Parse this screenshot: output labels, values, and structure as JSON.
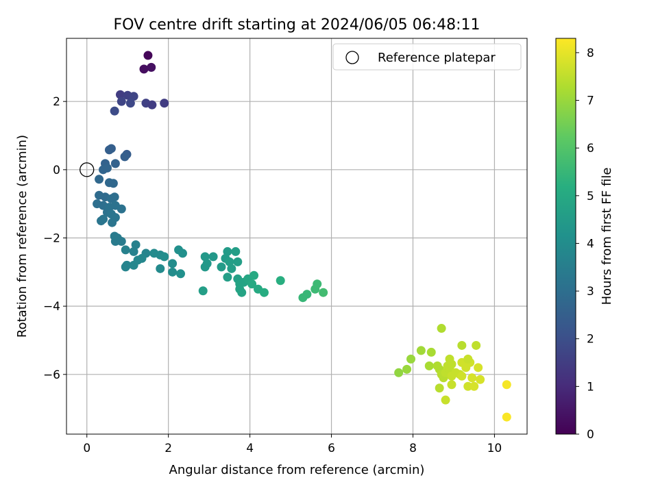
{
  "chart_data": {
    "type": "scatter",
    "title": "FOV centre drift starting at 2024/06/05 06:48:11",
    "xlabel": "Angular distance from reference (arcmin)",
    "ylabel": "Rotation from reference (arcmin)",
    "xlim": [
      -0.5,
      10.8
    ],
    "ylim": [
      -7.75,
      3.85
    ],
    "xticks": [
      0,
      2,
      4,
      6,
      8,
      10
    ],
    "yticks": [
      -6,
      -4,
      -2,
      0,
      2
    ],
    "grid": true,
    "legend": {
      "location": "upper-right",
      "entries": [
        "Reference platepar"
      ]
    },
    "colorbar": {
      "label": "Hours from first FF file",
      "colormap": "viridis",
      "min": 0,
      "max": 8.3,
      "ticks": [
        0,
        1,
        2,
        3,
        4,
        5,
        6,
        7,
        8
      ]
    },
    "reference_point": {
      "x": 0,
      "y": 0
    },
    "points": [
      {
        "x": 1.5,
        "y": 3.35,
        "c": 0.1
      },
      {
        "x": 1.4,
        "y": 2.95,
        "c": 0.3
      },
      {
        "x": 1.58,
        "y": 3.0,
        "c": 0.35
      },
      {
        "x": 0.82,
        "y": 2.2,
        "c": 1.5
      },
      {
        "x": 1.0,
        "y": 2.18,
        "c": 1.6
      },
      {
        "x": 1.15,
        "y": 2.15,
        "c": 1.7
      },
      {
        "x": 0.85,
        "y": 2.0,
        "c": 1.7
      },
      {
        "x": 1.07,
        "y": 1.95,
        "c": 1.8
      },
      {
        "x": 1.45,
        "y": 1.95,
        "c": 1.6
      },
      {
        "x": 1.6,
        "y": 1.9,
        "c": 1.5
      },
      {
        "x": 1.9,
        "y": 1.95,
        "c": 1.5
      },
      {
        "x": 0.68,
        "y": 1.72,
        "c": 1.9
      },
      {
        "x": 0.55,
        "y": 0.58,
        "c": 2.5
      },
      {
        "x": 0.6,
        "y": 0.62,
        "c": 2.5
      },
      {
        "x": 0.98,
        "y": 0.45,
        "c": 2.4
      },
      {
        "x": 0.93,
        "y": 0.38,
        "c": 2.5
      },
      {
        "x": 0.45,
        "y": 0.18,
        "c": 2.6
      },
      {
        "x": 0.7,
        "y": 0.18,
        "c": 2.6
      },
      {
        "x": 0.4,
        "y": 0.0,
        "c": 2.7
      },
      {
        "x": 0.5,
        "y": 0.05,
        "c": 2.7
      },
      {
        "x": 0.3,
        "y": -0.28,
        "c": 2.8
      },
      {
        "x": 0.55,
        "y": -0.38,
        "c": 2.8
      },
      {
        "x": 0.65,
        "y": -0.4,
        "c": 2.8
      },
      {
        "x": 0.3,
        "y": -0.75,
        "c": 2.9
      },
      {
        "x": 0.45,
        "y": -0.8,
        "c": 2.9
      },
      {
        "x": 0.6,
        "y": -0.85,
        "c": 3.0
      },
      {
        "x": 0.68,
        "y": -0.8,
        "c": 3.0
      },
      {
        "x": 0.25,
        "y": -1.0,
        "c": 3.0
      },
      {
        "x": 0.4,
        "y": -1.05,
        "c": 3.0
      },
      {
        "x": 0.55,
        "y": -1.1,
        "c": 3.1
      },
      {
        "x": 0.7,
        "y": -1.05,
        "c": 3.1
      },
      {
        "x": 0.85,
        "y": -1.15,
        "c": 3.1
      },
      {
        "x": 0.5,
        "y": -1.25,
        "c": 3.1
      },
      {
        "x": 0.6,
        "y": -1.3,
        "c": 3.2
      },
      {
        "x": 0.7,
        "y": -1.4,
        "c": 3.2
      },
      {
        "x": 0.4,
        "y": -1.45,
        "c": 3.2
      },
      {
        "x": 0.35,
        "y": -1.5,
        "c": 3.2
      },
      {
        "x": 0.62,
        "y": -1.55,
        "c": 3.2
      },
      {
        "x": 0.68,
        "y": -1.95,
        "c": 3.4
      },
      {
        "x": 0.75,
        "y": -2.0,
        "c": 3.4
      },
      {
        "x": 0.7,
        "y": -2.1,
        "c": 3.4
      },
      {
        "x": 0.85,
        "y": -2.1,
        "c": 3.4
      },
      {
        "x": 0.95,
        "y": -2.35,
        "c": 3.6
      },
      {
        "x": 1.2,
        "y": -2.2,
        "c": 3.6
      },
      {
        "x": 1.15,
        "y": -2.4,
        "c": 3.6
      },
      {
        "x": 1.45,
        "y": -2.45,
        "c": 3.7
      },
      {
        "x": 0.98,
        "y": -2.8,
        "c": 3.7
      },
      {
        "x": 0.95,
        "y": -2.85,
        "c": 3.7
      },
      {
        "x": 1.15,
        "y": -2.8,
        "c": 3.8
      },
      {
        "x": 1.25,
        "y": -2.65,
        "c": 3.8
      },
      {
        "x": 1.35,
        "y": -2.6,
        "c": 3.8
      },
      {
        "x": 1.65,
        "y": -2.45,
        "c": 3.9
      },
      {
        "x": 1.8,
        "y": -2.5,
        "c": 3.9
      },
      {
        "x": 1.8,
        "y": -2.9,
        "c": 3.9
      },
      {
        "x": 1.9,
        "y": -2.55,
        "c": 4.0
      },
      {
        "x": 2.1,
        "y": -2.75,
        "c": 4.0
      },
      {
        "x": 2.1,
        "y": -3.0,
        "c": 4.0
      },
      {
        "x": 2.25,
        "y": -2.35,
        "c": 4.1
      },
      {
        "x": 2.35,
        "y": -2.45,
        "c": 4.1
      },
      {
        "x": 2.3,
        "y": -3.05,
        "c": 4.1
      },
      {
        "x": 2.9,
        "y": -2.55,
        "c": 4.4
      },
      {
        "x": 3.1,
        "y": -2.55,
        "c": 4.4
      },
      {
        "x": 2.95,
        "y": -2.75,
        "c": 4.4
      },
      {
        "x": 2.9,
        "y": -2.85,
        "c": 4.4
      },
      {
        "x": 3.3,
        "y": -2.85,
        "c": 4.5
      },
      {
        "x": 3.4,
        "y": -2.6,
        "c": 4.5
      },
      {
        "x": 3.45,
        "y": -2.4,
        "c": 4.5
      },
      {
        "x": 3.5,
        "y": -2.7,
        "c": 4.6
      },
      {
        "x": 3.55,
        "y": -2.9,
        "c": 4.6
      },
      {
        "x": 3.65,
        "y": -2.4,
        "c": 4.6
      },
      {
        "x": 3.7,
        "y": -2.7,
        "c": 4.6
      },
      {
        "x": 3.45,
        "y": -3.15,
        "c": 4.6
      },
      {
        "x": 2.85,
        "y": -3.55,
        "c": 4.6
      },
      {
        "x": 3.7,
        "y": -3.2,
        "c": 4.7
      },
      {
        "x": 3.75,
        "y": -3.35,
        "c": 4.8
      },
      {
        "x": 3.75,
        "y": -3.5,
        "c": 4.8
      },
      {
        "x": 3.8,
        "y": -3.6,
        "c": 4.8
      },
      {
        "x": 3.85,
        "y": -3.3,
        "c": 4.8
      },
      {
        "x": 3.95,
        "y": -3.2,
        "c": 4.9
      },
      {
        "x": 4.05,
        "y": -3.35,
        "c": 5.0
      },
      {
        "x": 4.1,
        "y": -3.1,
        "c": 5.0
      },
      {
        "x": 4.2,
        "y": -3.5,
        "c": 5.0
      },
      {
        "x": 4.35,
        "y": -3.6,
        "c": 5.1
      },
      {
        "x": 4.75,
        "y": -3.25,
        "c": 5.2
      },
      {
        "x": 5.3,
        "y": -3.75,
        "c": 5.5
      },
      {
        "x": 5.4,
        "y": -3.65,
        "c": 5.5
      },
      {
        "x": 5.6,
        "y": -3.5,
        "c": 5.6
      },
      {
        "x": 5.65,
        "y": -3.35,
        "c": 5.6
      },
      {
        "x": 5.8,
        "y": -3.6,
        "c": 5.7
      },
      {
        "x": 7.65,
        "y": -5.95,
        "c": 6.9
      },
      {
        "x": 7.85,
        "y": -5.85,
        "c": 7.0
      },
      {
        "x": 7.95,
        "y": -5.55,
        "c": 7.0
      },
      {
        "x": 8.2,
        "y": -5.3,
        "c": 7.1
      },
      {
        "x": 8.45,
        "y": -5.35,
        "c": 7.2
      },
      {
        "x": 8.4,
        "y": -5.75,
        "c": 7.2
      },
      {
        "x": 8.6,
        "y": -5.75,
        "c": 7.3
      },
      {
        "x": 8.65,
        "y": -5.85,
        "c": 7.3
      },
      {
        "x": 8.7,
        "y": -6.0,
        "c": 7.4
      },
      {
        "x": 8.65,
        "y": -6.4,
        "c": 7.4
      },
      {
        "x": 8.75,
        "y": -6.1,
        "c": 7.4
      },
      {
        "x": 8.8,
        "y": -5.95,
        "c": 7.5
      },
      {
        "x": 8.85,
        "y": -5.75,
        "c": 7.5
      },
      {
        "x": 8.9,
        "y": -5.85,
        "c": 7.5
      },
      {
        "x": 8.9,
        "y": -5.55,
        "c": 7.5
      },
      {
        "x": 8.95,
        "y": -5.7,
        "c": 7.5
      },
      {
        "x": 8.95,
        "y": -6.05,
        "c": 7.6
      },
      {
        "x": 8.95,
        "y": -6.3,
        "c": 7.6
      },
      {
        "x": 8.8,
        "y": -6.75,
        "c": 7.6
      },
      {
        "x": 8.7,
        "y": -4.65,
        "c": 7.3
      },
      {
        "x": 9.05,
        "y": -5.95,
        "c": 7.6
      },
      {
        "x": 9.15,
        "y": -6.0,
        "c": 7.6
      },
      {
        "x": 9.2,
        "y": -5.65,
        "c": 7.7
      },
      {
        "x": 9.2,
        "y": -6.05,
        "c": 7.7
      },
      {
        "x": 9.2,
        "y": -5.15,
        "c": 7.4
      },
      {
        "x": 9.3,
        "y": -5.8,
        "c": 7.7
      },
      {
        "x": 9.35,
        "y": -6.35,
        "c": 7.7
      },
      {
        "x": 9.4,
        "y": -5.65,
        "c": 7.7
      },
      {
        "x": 9.45,
        "y": -6.1,
        "c": 7.8
      },
      {
        "x": 9.5,
        "y": -6.35,
        "c": 7.8
      },
      {
        "x": 9.55,
        "y": -5.15,
        "c": 7.5
      },
      {
        "x": 9.6,
        "y": -5.8,
        "c": 7.8
      },
      {
        "x": 9.65,
        "y": -6.15,
        "c": 7.8
      },
      {
        "x": 9.35,
        "y": -5.55,
        "c": 7.6
      },
      {
        "x": 10.3,
        "y": -6.3,
        "c": 8.2
      },
      {
        "x": 10.3,
        "y": -7.25,
        "c": 8.25
      }
    ]
  }
}
